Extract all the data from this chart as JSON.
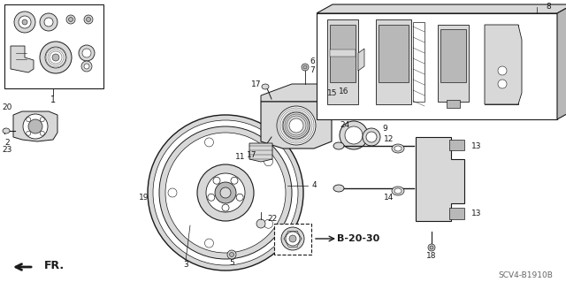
{
  "bg_color": "#ffffff",
  "line_color": "#1a1a1a",
  "diagram_code": "SCV4-B1910B",
  "ref_text": "B-20-30",
  "fr_label": "FR.",
  "gray_light": "#d8d8d8",
  "gray_mid": "#b8b8b8",
  "gray_dark": "#888888"
}
